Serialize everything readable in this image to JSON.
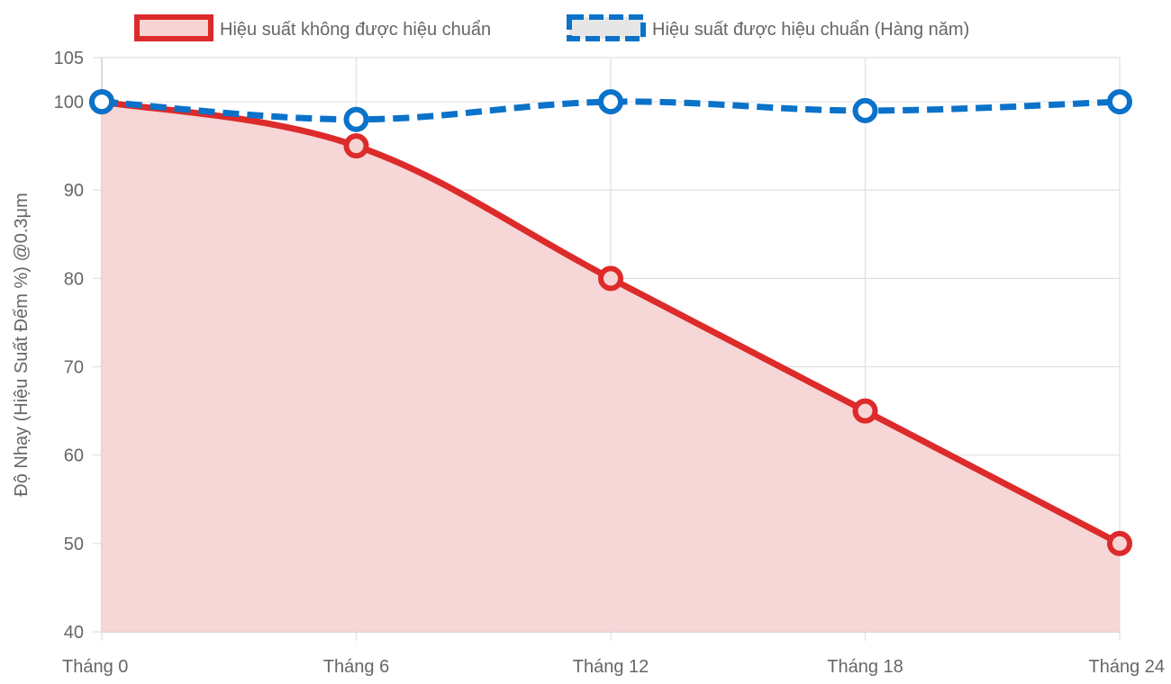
{
  "chart_data": {
    "type": "line",
    "categories": [
      "Tháng 0",
      "Tháng 6",
      "Tháng 12",
      "Tháng 18",
      "Tháng 24"
    ],
    "series": [
      {
        "name": "Hiệu suất không được hiệu chuẩn",
        "values": [
          100,
          95,
          80,
          65,
          50
        ],
        "color": "#dd2a2a",
        "fill": "#f6d4d4",
        "style": "solid",
        "filled": true
      },
      {
        "name": "Hiệu suất được hiệu chuẩn (Hàng năm)",
        "values": [
          100,
          98,
          100,
          99,
          100
        ],
        "color": "#0a72c9",
        "fill": "#e6e6e6",
        "style": "dashed",
        "filled": false
      }
    ],
    "ylabel": "Độ Nhạy (Hiệu Suất Đếm %) @0.3μm",
    "ylim": [
      40,
      105
    ],
    "yticks": [
      40,
      50,
      60,
      70,
      80,
      90,
      100,
      105
    ],
    "grid": true,
    "legend": "top-center"
  }
}
